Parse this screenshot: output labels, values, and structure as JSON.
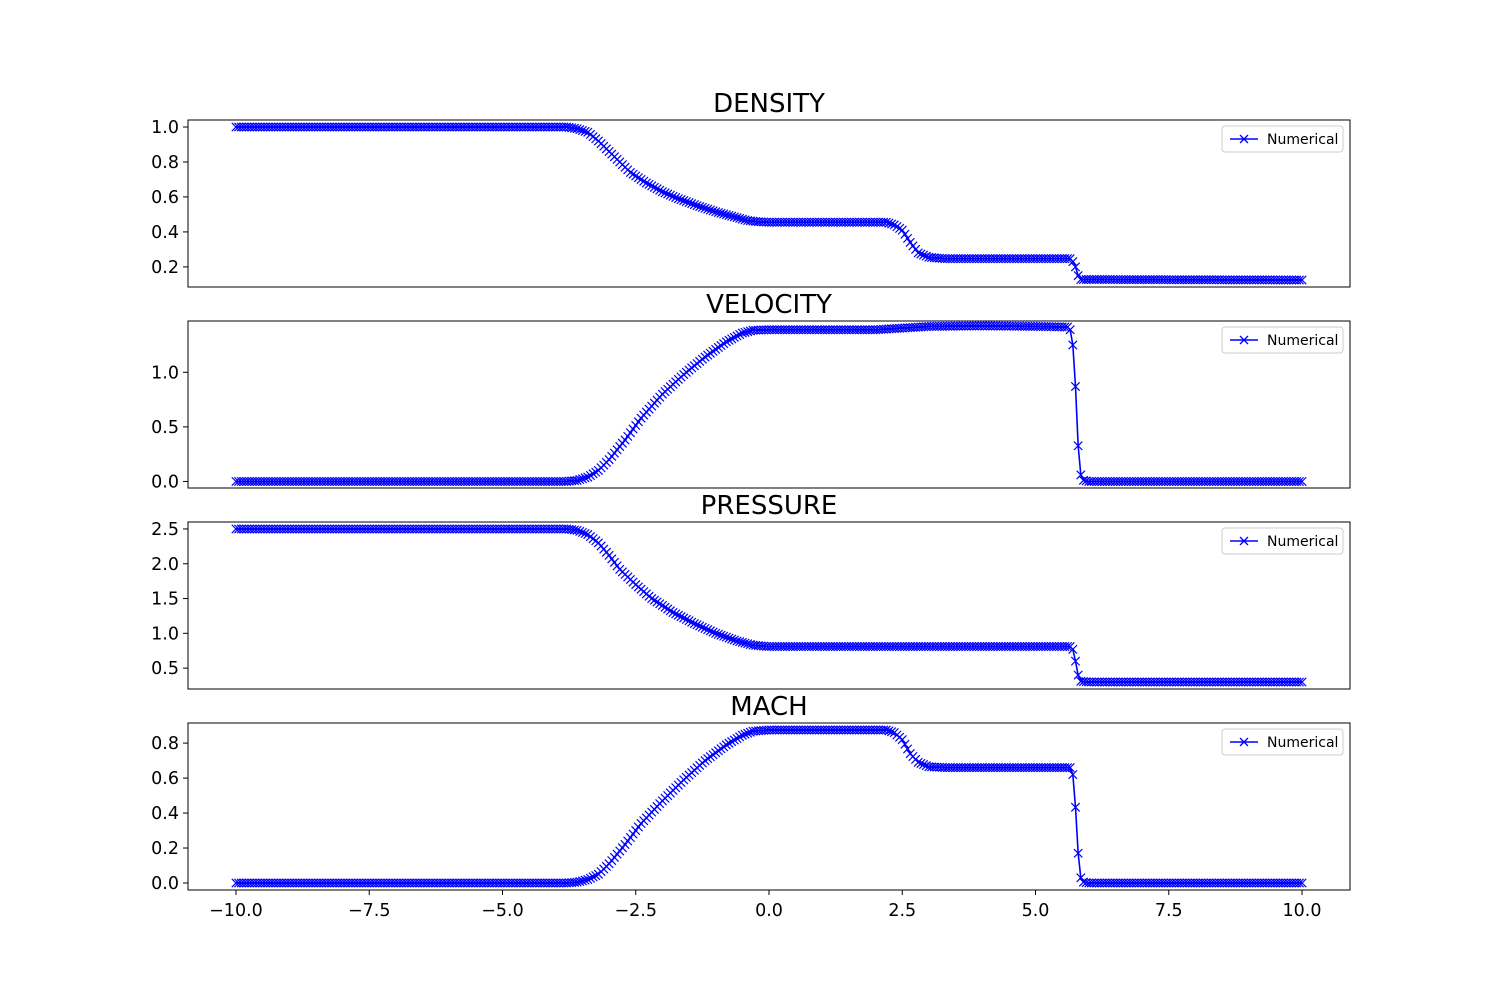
{
  "colors": {
    "line": "#0000ff",
    "axes": "#000000",
    "legend_border": "#cccccc"
  },
  "chart_data": [
    {
      "type": "line",
      "title": "DENSITY",
      "xlim": [
        -10.9,
        10.9
      ],
      "ylim": [
        0.085,
        1.04
      ],
      "yticks": [
        0.2,
        0.4,
        0.6,
        0.8,
        1.0
      ],
      "ytick_labels": [
        "0.2",
        "0.4",
        "0.6",
        "0.8",
        "1.0"
      ],
      "legend": {
        "label": "Numerical",
        "position": "upper-right"
      },
      "profile": [
        [
          -10,
          1.0
        ],
        [
          -3.8,
          1.0
        ],
        [
          -3.6,
          0.99
        ],
        [
          -3.4,
          0.97
        ],
        [
          -3.2,
          0.92
        ],
        [
          -3.0,
          0.86
        ],
        [
          -2.8,
          0.8
        ],
        [
          -2.6,
          0.74
        ],
        [
          -2.3,
          0.68
        ],
        [
          -2.0,
          0.63
        ],
        [
          -1.7,
          0.59
        ],
        [
          -1.3,
          0.545
        ],
        [
          -1.0,
          0.515
        ],
        [
          -0.7,
          0.49
        ],
        [
          -0.4,
          0.465
        ],
        [
          -0.2,
          0.458
        ],
        [
          0.0,
          0.455
        ],
        [
          2.2,
          0.455
        ],
        [
          2.35,
          0.44
        ],
        [
          2.5,
          0.41
        ],
        [
          2.65,
          0.34
        ],
        [
          2.8,
          0.28
        ],
        [
          3.0,
          0.255
        ],
        [
          3.3,
          0.247
        ],
        [
          5.65,
          0.247
        ],
        [
          5.7,
          0.23
        ],
        [
          5.75,
          0.2
        ],
        [
          5.8,
          0.15
        ],
        [
          5.85,
          0.128
        ],
        [
          10,
          0.125
        ]
      ]
    },
    {
      "type": "line",
      "title": "VELOCITY",
      "xlim": [
        -10.9,
        10.9
      ],
      "ylim": [
        -0.06,
        1.47
      ],
      "yticks": [
        0.0,
        0.5,
        1.0
      ],
      "ytick_labels": [
        "0.0",
        "0.5",
        "1.0"
      ],
      "legend": {
        "label": "Numerical",
        "position": "upper-right"
      },
      "profile": [
        [
          -10,
          0.0
        ],
        [
          -3.8,
          0.0
        ],
        [
          -3.6,
          0.01
        ],
        [
          -3.4,
          0.04
        ],
        [
          -3.2,
          0.1
        ],
        [
          -3.0,
          0.2
        ],
        [
          -2.7,
          0.38
        ],
        [
          -2.4,
          0.58
        ],
        [
          -2.0,
          0.8
        ],
        [
          -1.6,
          0.98
        ],
        [
          -1.2,
          1.14
        ],
        [
          -0.8,
          1.28
        ],
        [
          -0.5,
          1.36
        ],
        [
          -0.3,
          1.385
        ],
        [
          0.0,
          1.39
        ],
        [
          2.0,
          1.39
        ],
        [
          2.5,
          1.405
        ],
        [
          3.0,
          1.42
        ],
        [
          4.0,
          1.425
        ],
        [
          5.0,
          1.42
        ],
        [
          5.6,
          1.415
        ],
        [
          5.65,
          1.39
        ],
        [
          5.7,
          1.25
        ],
        [
          5.73,
          1.07
        ],
        [
          5.76,
          0.77
        ],
        [
          5.79,
          0.41
        ],
        [
          5.82,
          0.16
        ],
        [
          5.85,
          0.06
        ],
        [
          5.9,
          0.01
        ],
        [
          6.0,
          0.0
        ],
        [
          10,
          0.0
        ]
      ]
    },
    {
      "type": "line",
      "title": "PRESSURE",
      "xlim": [
        -10.9,
        10.9
      ],
      "ylim": [
        0.2,
        2.6
      ],
      "yticks": [
        0.5,
        1.0,
        1.5,
        2.0,
        2.5
      ],
      "ytick_labels": [
        "0.5",
        "1.0",
        "1.5",
        "2.0",
        "2.5"
      ],
      "legend": {
        "label": "Numerical",
        "position": "upper-right"
      },
      "profile": [
        [
          -10,
          2.5
        ],
        [
          -3.8,
          2.5
        ],
        [
          -3.6,
          2.48
        ],
        [
          -3.4,
          2.42
        ],
        [
          -3.2,
          2.3
        ],
        [
          -3.0,
          2.12
        ],
        [
          -2.8,
          1.92
        ],
        [
          -2.5,
          1.7
        ],
        [
          -2.2,
          1.5
        ],
        [
          -1.8,
          1.3
        ],
        [
          -1.4,
          1.14
        ],
        [
          -1.0,
          1.0
        ],
        [
          -0.6,
          0.89
        ],
        [
          -0.3,
          0.83
        ],
        [
          0.0,
          0.81
        ],
        [
          5.65,
          0.81
        ],
        [
          5.7,
          0.77
        ],
        [
          5.75,
          0.6
        ],
        [
          5.8,
          0.4
        ],
        [
          5.85,
          0.31
        ],
        [
          6.0,
          0.3
        ],
        [
          10,
          0.3
        ]
      ]
    },
    {
      "type": "line",
      "title": "MACH",
      "xlim": [
        -10.9,
        10.9
      ],
      "ylim": [
        -0.04,
        0.915
      ],
      "yticks": [
        0.0,
        0.2,
        0.4,
        0.6,
        0.8
      ],
      "ytick_labels": [
        "0.0",
        "0.2",
        "0.4",
        "0.6",
        "0.8"
      ],
      "xticks": [
        -10.0,
        -7.5,
        -5.0,
        -2.5,
        0.0,
        2.5,
        5.0,
        7.5,
        10.0
      ],
      "xtick_labels": [
        "−10.0",
        "−7.5",
        "−5.0",
        "−2.5",
        "0.0",
        "2.5",
        "5.0",
        "7.5",
        "10.0"
      ],
      "legend": {
        "label": "Numerical",
        "position": "upper-right"
      },
      "profile": [
        [
          -10,
          0.0
        ],
        [
          -3.8,
          0.0
        ],
        [
          -3.6,
          0.005
        ],
        [
          -3.4,
          0.02
        ],
        [
          -3.2,
          0.05
        ],
        [
          -3.0,
          0.11
        ],
        [
          -2.7,
          0.22
        ],
        [
          -2.4,
          0.34
        ],
        [
          -2.0,
          0.47
        ],
        [
          -1.6,
          0.59
        ],
        [
          -1.2,
          0.7
        ],
        [
          -0.8,
          0.79
        ],
        [
          -0.5,
          0.845
        ],
        [
          -0.3,
          0.868
        ],
        [
          0.0,
          0.875
        ],
        [
          2.2,
          0.875
        ],
        [
          2.35,
          0.86
        ],
        [
          2.5,
          0.82
        ],
        [
          2.65,
          0.74
        ],
        [
          2.8,
          0.69
        ],
        [
          3.0,
          0.665
        ],
        [
          3.3,
          0.66
        ],
        [
          5.65,
          0.66
        ],
        [
          5.7,
          0.62
        ],
        [
          5.73,
          0.52
        ],
        [
          5.76,
          0.39
        ],
        [
          5.79,
          0.21
        ],
        [
          5.82,
          0.09
        ],
        [
          5.85,
          0.03
        ],
        [
          5.9,
          0.005
        ],
        [
          6.0,
          0.0
        ],
        [
          10,
          0.0
        ]
      ]
    }
  ]
}
